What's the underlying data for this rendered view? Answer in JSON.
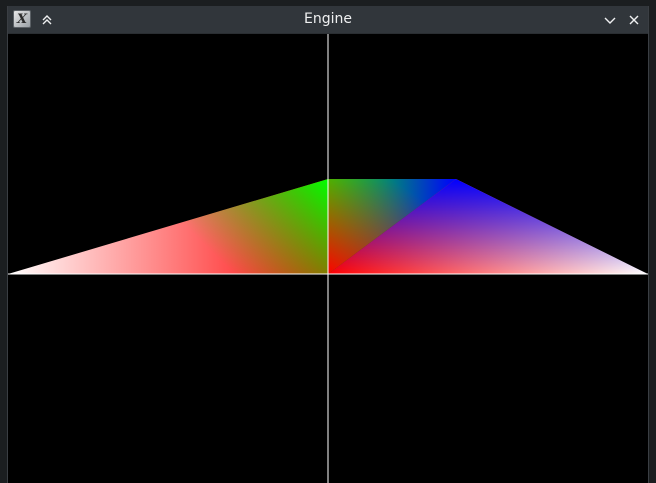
{
  "window": {
    "title": "Engine",
    "app_icon_glyph": "X",
    "icons": {
      "app": "x-app-icon",
      "keep_above": "chevrons-up-icon",
      "minimize": "chevron-down-icon",
      "close": "close-icon"
    }
  },
  "scene": {
    "background_color": "#000000",
    "axis_color": "#ffffff",
    "vertex_colors": {
      "white": "#ffffff",
      "red": "#ff0000",
      "green": "#00ff00",
      "blue": "#0000ff"
    }
  }
}
